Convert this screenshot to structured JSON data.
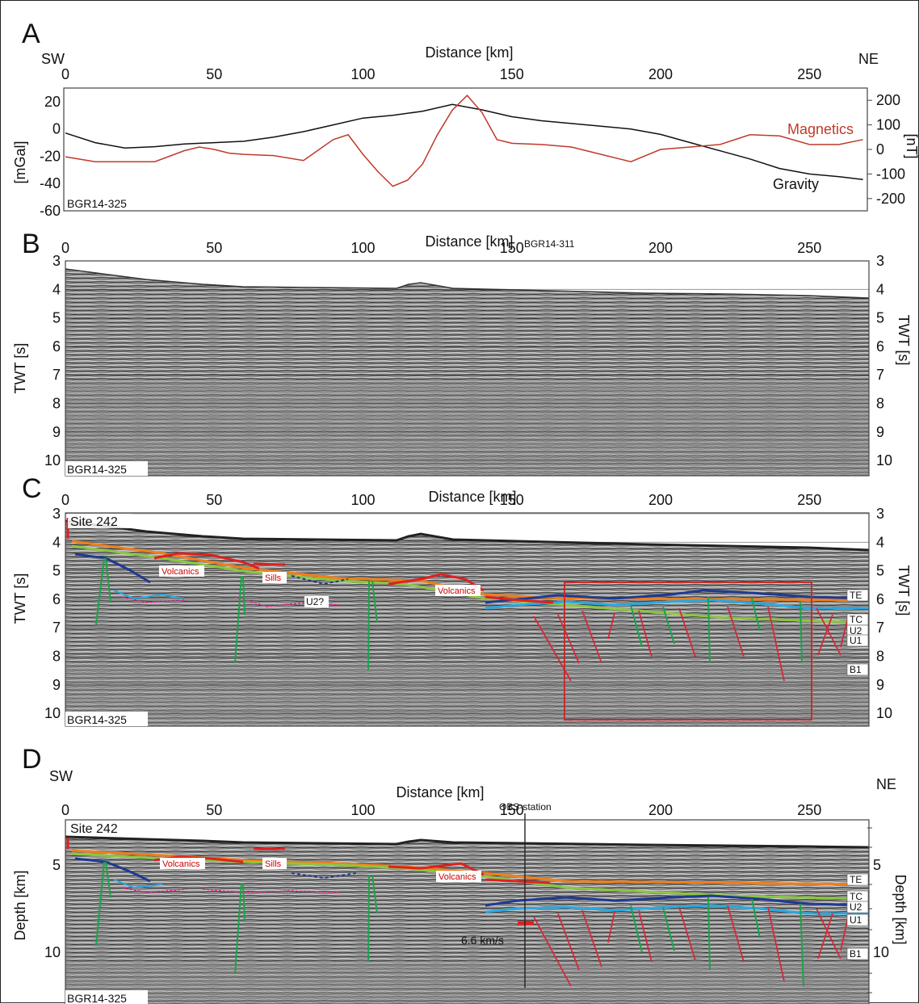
{
  "panels": {
    "a": {
      "label": "A",
      "dir_left": "SW",
      "dir_right": "NE",
      "x_title": "Distance [km]",
      "y_left": "[mGal]",
      "y_right": "[nT]",
      "profile": "BGR14-325",
      "series_magnetics": "Magnetics",
      "series_gravity": "Gravity"
    },
    "b": {
      "label": "B",
      "x_title": "Distance [km]",
      "crossing": "BGR14-311",
      "y_left": "TWT [s]",
      "y_right": "TWT [s]",
      "profile": "BGR14-325"
    },
    "c": {
      "label": "C",
      "x_title": "Distance [km]",
      "y_left": "TWT [s]",
      "y_right": "TWT [s]",
      "profile": "BGR14-325",
      "site": "Site 242",
      "labels": {
        "volcanics": "Volcanics",
        "sills": "Sills",
        "u2q": "U2?"
      },
      "horizons": [
        "TE",
        "TC",
        "U2",
        "U1",
        "B1"
      ]
    },
    "d": {
      "label": "D",
      "dir_left": "SW",
      "dir_right": "NE",
      "x_title": "Distance [km]",
      "y_left": "Depth [km]",
      "y_right": "Depth [km]",
      "profile": "BGR14-325",
      "site": "Site 242",
      "obs": "OBS-station",
      "velocity": "6.6 km/s",
      "labels": {
        "volcanics": "Volcanics",
        "sills": "Sills"
      },
      "horizons": [
        "TE",
        "TC",
        "U2",
        "U1",
        "B1"
      ]
    }
  },
  "colors": {
    "magnetics": "#c0392b",
    "gravity": "#111111",
    "seafloor": "#222222",
    "TE": "#f07f1b",
    "TC": "#8cc63f",
    "U2": "#1f3a93",
    "U1": "#29a8e0",
    "B1": "#e91e8c",
    "volcanics": "#e02020",
    "faults_green": "#1aa34a",
    "faults_red": "#d6283a",
    "box": "#cc2222"
  },
  "chart_data": [
    {
      "type": "line",
      "title": "",
      "xlabel": "Distance [km]",
      "ylabel": "[mGal]",
      "ylabel_right": "[nT]",
      "x_ticks": [
        0,
        50,
        100,
        150,
        200,
        250
      ],
      "y_ticks": [
        20,
        0,
        -20,
        -40,
        -60
      ],
      "y_ticks_right": [
        200,
        100,
        0,
        -100,
        -200
      ],
      "xlim": [
        0,
        270
      ],
      "ylim": [
        -60,
        30
      ],
      "ylim_right": [
        -250,
        250
      ],
      "series": [
        {
          "name": "Gravity",
          "axis": "left",
          "x": [
            0,
            10,
            20,
            30,
            40,
            50,
            60,
            70,
            80,
            90,
            100,
            110,
            120,
            130,
            140,
            150,
            160,
            170,
            180,
            190,
            200,
            210,
            220,
            230,
            240,
            250,
            260,
            268
          ],
          "y": [
            -3,
            -10,
            -14,
            -13,
            -11,
            -10,
            -9,
            -6,
            -2,
            3,
            8,
            10,
            13,
            18,
            14,
            9,
            6,
            4,
            2,
            0,
            -4,
            -10,
            -16,
            -22,
            -29,
            -33,
            -35,
            -37
          ]
        },
        {
          "name": "Magnetics",
          "axis": "right",
          "x": [
            0,
            10,
            20,
            30,
            40,
            45,
            50,
            55,
            60,
            70,
            80,
            90,
            95,
            100,
            105,
            110,
            115,
            120,
            125,
            130,
            135,
            140,
            145,
            150,
            160,
            170,
            180,
            190,
            200,
            210,
            220,
            230,
            240,
            250,
            260,
            268
          ],
          "y": [
            -30,
            -50,
            -50,
            -50,
            -5,
            10,
            0,
            -15,
            -20,
            -25,
            -45,
            40,
            60,
            -20,
            -90,
            -150,
            -125,
            -60,
            60,
            160,
            220,
            150,
            40,
            25,
            20,
            10,
            -20,
            -50,
            0,
            10,
            20,
            60,
            55,
            20,
            20,
            40
          ]
        }
      ]
    }
  ]
}
